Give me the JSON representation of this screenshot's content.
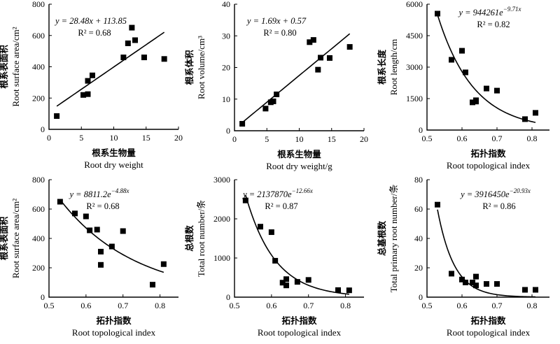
{
  "chart_data": [
    {
      "type": "scatter",
      "ylabel_cn": "根系表面积",
      "ylabel": "Root surface area/cm²",
      "xlabel_cn": "根系生物量",
      "xlabel": "Root dry weight",
      "xlim": [
        0,
        20
      ],
      "xticks": [
        0,
        5,
        10,
        15,
        20
      ],
      "ylim": [
        0,
        800
      ],
      "yticks": [
        0,
        200,
        400,
        600,
        800
      ],
      "equation": "y = 28.48x + 113.85",
      "r2": "R² = 0.68",
      "fit": {
        "kind": "linear",
        "a": 28.48,
        "b": 113.85,
        "x0": 1.2,
        "x1": 17.8
      },
      "points": [
        {
          "x": 1.2,
          "y": 85
        },
        {
          "x": 5.3,
          "y": 220
        },
        {
          "x": 6.0,
          "y": 225
        },
        {
          "x": 6.0,
          "y": 310
        },
        {
          "x": 6.7,
          "y": 345
        },
        {
          "x": 11.5,
          "y": 460
        },
        {
          "x": 12.2,
          "y": 550
        },
        {
          "x": 12.8,
          "y": 650
        },
        {
          "x": 13.3,
          "y": 570
        },
        {
          "x": 14.7,
          "y": 460
        },
        {
          "x": 17.8,
          "y": 450
        }
      ]
    },
    {
      "type": "scatter",
      "ylabel_cn": "根系体积",
      "ylabel": "Root volume/cm³",
      "xlabel_cn": "根系生物量",
      "xlabel": "Root dry weight/g",
      "xlim": [
        0,
        20
      ],
      "xticks": [
        0,
        5,
        10,
        15,
        20
      ],
      "ylim": [
        0,
        40
      ],
      "yticks": [
        0,
        10,
        20,
        30,
        40
      ],
      "equation": "y = 1.69x + 0.57",
      "r2": "R² = 0.80",
      "fit": {
        "kind": "linear",
        "a": 1.69,
        "b": 0.57,
        "x0": 1.2,
        "x1": 17.8
      },
      "points": [
        {
          "x": 1.2,
          "y": 2.2
        },
        {
          "x": 4.8,
          "y": 7.0
        },
        {
          "x": 5.6,
          "y": 9.0
        },
        {
          "x": 6.0,
          "y": 9.3
        },
        {
          "x": 6.5,
          "y": 11.5
        },
        {
          "x": 11.6,
          "y": 28.0
        },
        {
          "x": 12.2,
          "y": 28.7
        },
        {
          "x": 12.9,
          "y": 19.3
        },
        {
          "x": 13.3,
          "y": 23.1
        },
        {
          "x": 14.7,
          "y": 23.0
        },
        {
          "x": 17.8,
          "y": 26.5
        }
      ]
    },
    {
      "type": "scatter",
      "ylabel_cn": "根系长度",
      "ylabel": "Root length/cm",
      "xlabel_cn": "拓扑指数",
      "xlabel": "Root topological index",
      "xlim": [
        0.5,
        0.85
      ],
      "xticks": [
        0.5,
        0.6,
        0.7,
        0.8
      ],
      "ylim": [
        0,
        6000
      ],
      "yticks": [
        0,
        1500,
        3000,
        4500,
        6000
      ],
      "equation": "y = 944261e",
      "equation_exp": "−9.71x",
      "r2": "R² = 0.82",
      "fit": {
        "kind": "exp",
        "a": 944261,
        "k": -9.71,
        "x0": 0.53,
        "x1": 0.81
      },
      "points": [
        {
          "x": 0.53,
          "y": 5550
        },
        {
          "x": 0.57,
          "y": 3350
        },
        {
          "x": 0.6,
          "y": 3780
        },
        {
          "x": 0.61,
          "y": 2750
        },
        {
          "x": 0.63,
          "y": 1320
        },
        {
          "x": 0.64,
          "y": 1420
        },
        {
          "x": 0.64,
          "y": 1360
        },
        {
          "x": 0.67,
          "y": 1980
        },
        {
          "x": 0.7,
          "y": 1880
        },
        {
          "x": 0.78,
          "y": 520
        },
        {
          "x": 0.81,
          "y": 820
        }
      ]
    },
    {
      "type": "scatter",
      "ylabel_cn": "根系表面积",
      "ylabel": "Root surface area/cm²",
      "xlabel_cn": "拓扑指数",
      "xlabel": "Root topological index",
      "xlim": [
        0.5,
        0.85
      ],
      "xticks": [
        0.5,
        0.6,
        0.7,
        0.8
      ],
      "ylim": [
        0,
        800
      ],
      "yticks": [
        0,
        200,
        400,
        600,
        800
      ],
      "equation": "y = 8811.2e",
      "equation_exp": "−4.88x",
      "r2": "R² = 0.68",
      "fit": {
        "kind": "exp",
        "a": 8811.2,
        "k": -4.88,
        "x0": 0.53,
        "x1": 0.81
      },
      "points": [
        {
          "x": 0.53,
          "y": 650
        },
        {
          "x": 0.57,
          "y": 570
        },
        {
          "x": 0.6,
          "y": 550
        },
        {
          "x": 0.61,
          "y": 455
        },
        {
          "x": 0.63,
          "y": 460
        },
        {
          "x": 0.64,
          "y": 310
        },
        {
          "x": 0.64,
          "y": 220
        },
        {
          "x": 0.67,
          "y": 345
        },
        {
          "x": 0.7,
          "y": 450
        },
        {
          "x": 0.78,
          "y": 85
        },
        {
          "x": 0.81,
          "y": 225
        }
      ]
    },
    {
      "type": "scatter",
      "ylabel_cn": "总根数",
      "ylabel": "Total root number/条",
      "xlabel_cn": "拓扑指数",
      "xlabel": "Root topological index",
      "xlim": [
        0.5,
        0.85
      ],
      "xticks": [
        0.5,
        0.6,
        0.7,
        0.8
      ],
      "ylim": [
        0,
        3000
      ],
      "yticks": [
        0,
        1000,
        2000,
        3000
      ],
      "equation": "y = 2137870e",
      "equation_exp": "−12.66x",
      "r2": "R² = 0.87",
      "fit": {
        "kind": "exp",
        "a": 2137870,
        "k": -12.66,
        "x0": 0.53,
        "x1": 0.81
      },
      "points": [
        {
          "x": 0.53,
          "y": 2470
        },
        {
          "x": 0.57,
          "y": 1800
        },
        {
          "x": 0.6,
          "y": 1660
        },
        {
          "x": 0.61,
          "y": 930
        },
        {
          "x": 0.63,
          "y": 370
        },
        {
          "x": 0.64,
          "y": 460
        },
        {
          "x": 0.64,
          "y": 300
        },
        {
          "x": 0.67,
          "y": 390
        },
        {
          "x": 0.7,
          "y": 440
        },
        {
          "x": 0.78,
          "y": 180
        },
        {
          "x": 0.81,
          "y": 175
        }
      ]
    },
    {
      "type": "scatter",
      "ylabel_cn": "总基根数",
      "ylabel": "Total primary root number/条",
      "xlabel_cn": "拓扑指数",
      "xlabel": "Root topological index",
      "xlim": [
        0.5,
        0.85
      ],
      "xticks": [
        0.5,
        0.6,
        0.7,
        0.8
      ],
      "ylim": [
        0,
        80
      ],
      "yticks": [
        0,
        20,
        40,
        60,
        80
      ],
      "equation": "y = 3916450e",
      "equation_exp": "−20.93x",
      "r2": "R² = 0.86",
      "fit": {
        "kind": "exp",
        "a": 3916450,
        "k": -20.93,
        "x0": 0.53,
        "x1": 0.81
      },
      "points": [
        {
          "x": 0.53,
          "y": 63
        },
        {
          "x": 0.57,
          "y": 16
        },
        {
          "x": 0.6,
          "y": 12
        },
        {
          "x": 0.61,
          "y": 10
        },
        {
          "x": 0.63,
          "y": 10
        },
        {
          "x": 0.64,
          "y": 14
        },
        {
          "x": 0.64,
          "y": 8
        },
        {
          "x": 0.67,
          "y": 9
        },
        {
          "x": 0.7,
          "y": 9
        },
        {
          "x": 0.78,
          "y": 5
        },
        {
          "x": 0.81,
          "y": 5
        }
      ]
    }
  ]
}
